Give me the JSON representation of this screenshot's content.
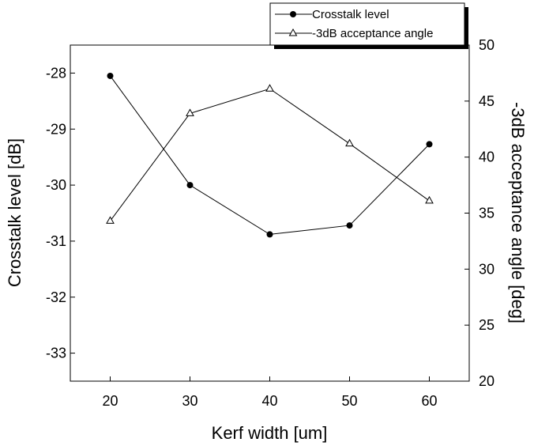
{
  "chart_data": {
    "type": "line",
    "title": "",
    "x": [
      20,
      30,
      40,
      50,
      60
    ],
    "xlabel": "Kerf width [um]",
    "xlim": [
      15,
      65
    ],
    "xticks": [
      20,
      30,
      40,
      50,
      60
    ],
    "ylabel": "Crosstalk level [dB]",
    "ylim": [
      -33.5,
      -27.5
    ],
    "yticks": [
      -28,
      -29,
      -30,
      -31,
      -32,
      -33
    ],
    "y2label": "-3dB acceptance angle [deg]",
    "y2lim": [
      20,
      50
    ],
    "y2ticks": [
      20,
      25,
      30,
      35,
      40,
      45,
      50
    ],
    "series": [
      {
        "name": "Crosstalk level",
        "axis": "left",
        "marker": "filled-circle",
        "values": [
          -28.05,
          -30.0,
          -30.88,
          -30.72,
          -29.27
        ]
      },
      {
        "name": "-3dB acceptance angle",
        "axis": "right",
        "marker": "open-triangle",
        "values": [
          34.3,
          43.9,
          46.1,
          41.2,
          36.1
        ]
      }
    ],
    "legend_position": "top-right",
    "grid": false
  }
}
